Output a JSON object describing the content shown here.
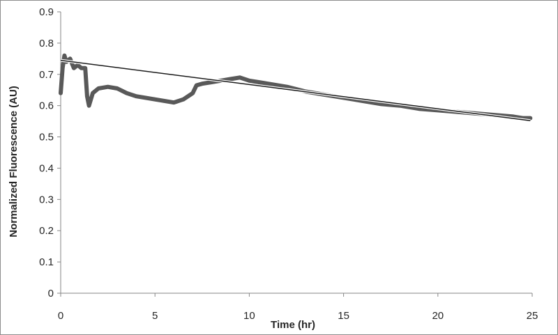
{
  "chart_data": {
    "type": "line",
    "title": "",
    "xlabel": "Time (hr)",
    "ylabel": "Normalized Fluorescence (AU)",
    "xlim": [
      0,
      25
    ],
    "ylim": [
      0,
      0.9
    ],
    "x_ticks": [
      "0",
      "5",
      "10",
      "15",
      "20",
      "25"
    ],
    "y_ticks": [
      "0",
      "0.1",
      "0.2",
      "0.3",
      "0.4",
      "0.5",
      "0.6",
      "0.7",
      "0.8",
      "0.9"
    ],
    "grid": false,
    "legend": "none",
    "series": [
      {
        "color": "#595959",
        "points": [
          [
            0.0,
            0.64
          ],
          [
            0.1,
            0.72
          ],
          [
            0.2,
            0.76
          ],
          [
            0.3,
            0.74
          ],
          [
            0.5,
            0.75
          ],
          [
            0.7,
            0.72
          ],
          [
            0.9,
            0.73
          ],
          [
            1.1,
            0.72
          ],
          [
            1.3,
            0.72
          ],
          [
            1.4,
            0.63
          ],
          [
            1.5,
            0.6
          ],
          [
            1.7,
            0.64
          ],
          [
            2.0,
            0.655
          ],
          [
            2.5,
            0.66
          ],
          [
            3.0,
            0.655
          ],
          [
            3.5,
            0.64
          ],
          [
            4.0,
            0.63
          ],
          [
            4.5,
            0.625
          ],
          [
            5.0,
            0.62
          ],
          [
            5.5,
            0.615
          ],
          [
            6.0,
            0.61
          ],
          [
            6.5,
            0.62
          ],
          [
            7.0,
            0.64
          ],
          [
            7.2,
            0.665
          ],
          [
            7.5,
            0.67
          ],
          [
            8.0,
            0.675
          ],
          [
            8.5,
            0.68
          ],
          [
            9.0,
            0.685
          ],
          [
            9.5,
            0.69
          ],
          [
            10.0,
            0.68
          ],
          [
            10.5,
            0.675
          ],
          [
            11.0,
            0.67
          ],
          [
            12.0,
            0.66
          ],
          [
            13.0,
            0.645
          ],
          [
            14.0,
            0.635
          ],
          [
            15.0,
            0.625
          ],
          [
            16.0,
            0.615
          ],
          [
            17.0,
            0.605
          ],
          [
            18.0,
            0.6
          ],
          [
            19.0,
            0.59
          ],
          [
            20.0,
            0.585
          ],
          [
            21.0,
            0.58
          ],
          [
            22.0,
            0.575
          ],
          [
            23.0,
            0.57
          ],
          [
            24.0,
            0.565
          ],
          [
            24.5,
            0.56
          ],
          [
            24.9,
            0.56
          ]
        ]
      },
      {
        "color": "#1a1a1a",
        "points": [
          [
            0.0,
            0.745
          ],
          [
            24.9,
            0.552
          ]
        ]
      }
    ]
  }
}
